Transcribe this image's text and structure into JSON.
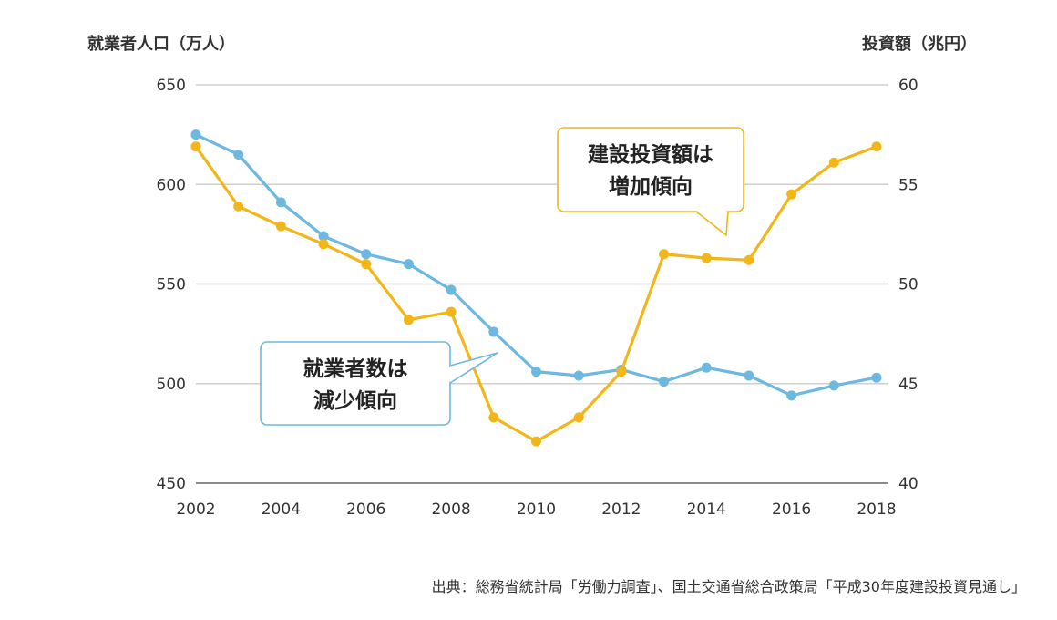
{
  "chart_data": {
    "type": "line",
    "x": [
      2002,
      2003,
      2004,
      2005,
      2006,
      2007,
      2008,
      2009,
      2010,
      2011,
      2012,
      2013,
      2014,
      2015,
      2016,
      2017,
      2018
    ],
    "x_tick_labels": [
      "2002",
      "2004",
      "2006",
      "2008",
      "2010",
      "2012",
      "2014",
      "2016",
      "2018"
    ],
    "y_left": {
      "label": "就業者人口（万人）",
      "range": [
        450,
        650
      ],
      "ticks": [
        "650",
        "600",
        "550",
        "500",
        "450"
      ]
    },
    "y_right": {
      "label": "投資額（兆円）",
      "range": [
        40,
        60
      ],
      "ticks": [
        "60",
        "55",
        "50",
        "45",
        "40"
      ]
    },
    "grid": "horizontal",
    "series": [
      {
        "id": "employment",
        "axis": "left",
        "color": "#6cb8e0",
        "values": [
          625,
          615,
          591,
          574,
          565,
          560,
          547,
          526,
          506,
          504,
          507,
          501,
          508,
          504,
          494,
          499,
          503
        ]
      },
      {
        "id": "investment",
        "axis": "right",
        "color": "#f2b618",
        "values": [
          56.9,
          53.9,
          52.9,
          52.0,
          51.0,
          48.2,
          48.6,
          43.3,
          42.1,
          43.3,
          45.6,
          51.5,
          51.3,
          51.2,
          54.5,
          56.1,
          56.9
        ]
      }
    ],
    "annotations": [
      {
        "id": "investment-callout",
        "lines": [
          "建設投資額は",
          "増加傾向"
        ],
        "color": "#f2b618"
      },
      {
        "id": "employment-callout",
        "lines": [
          "就業者数は",
          "減少傾向"
        ],
        "color": "#6cb8e0"
      }
    ]
  },
  "source_note": "出典：総務省統計局「労働力調査」、国土交通省総合政策局「平成30年度建設投資見通し」"
}
